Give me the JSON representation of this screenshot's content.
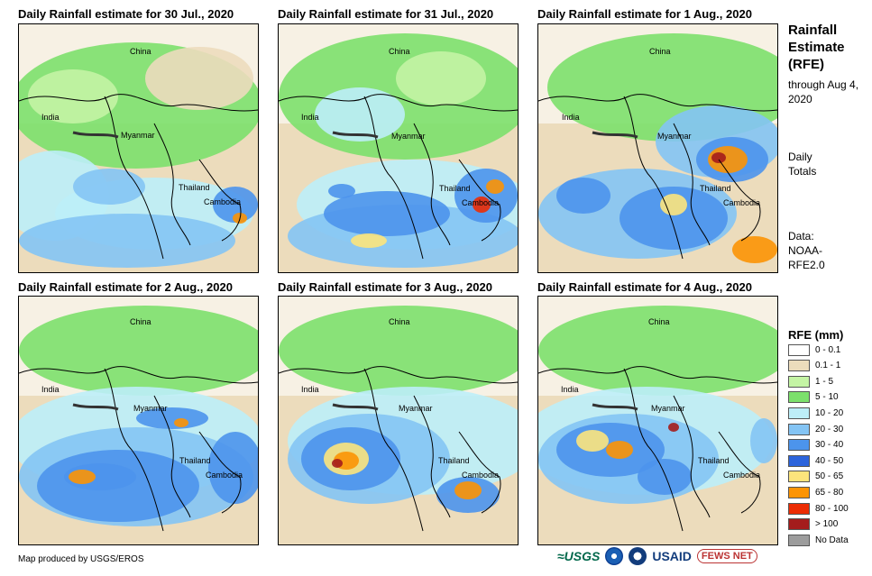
{
  "panels": [
    {
      "title": "Daily Rainfall estimate for 30 Jul., 2020"
    },
    {
      "title": "Daily Rainfall estimate for 31 Jul., 2020"
    },
    {
      "title": "Daily Rainfall estimate for 1 Aug., 2020"
    },
    {
      "title": "Daily Rainfall estimate for 2 Aug., 2020"
    },
    {
      "title": "Daily Rainfall estimate for 3 Aug., 2020"
    },
    {
      "title": "Daily Rainfall estimate for 4 Aug., 2020"
    }
  ],
  "country_labels": {
    "china": "China",
    "india": "India",
    "myanmar": "Myanmar",
    "thailand": "Thailand",
    "cambodia": "Cambodia"
  },
  "sidebar": {
    "title": "Rainfall Estimate (RFE)",
    "through": "through Aug 4, 2020",
    "daily": "Daily Totals",
    "data_source": "Data: NOAA-RFE2.0"
  },
  "legend": {
    "title": "RFE (mm)",
    "items": [
      {
        "label": "0 - 0.1",
        "color": "#ffffff"
      },
      {
        "label": "0.1 - 1",
        "color": "#ecdcbc"
      },
      {
        "label": "1 - 5",
        "color": "#c4f4a4"
      },
      {
        "label": "5 - 10",
        "color": "#7ce06c"
      },
      {
        "label": "10 - 20",
        "color": "#bdeef8"
      },
      {
        "label": "20 - 30",
        "color": "#84c4f4"
      },
      {
        "label": "30 - 40",
        "color": "#4c94ec"
      },
      {
        "label": "40 - 50",
        "color": "#2c64dc"
      },
      {
        "label": "50 - 65",
        "color": "#fce47c"
      },
      {
        "label": "65 - 80",
        "color": "#fc9404"
      },
      {
        "label": "80 - 100",
        "color": "#ec2c04"
      },
      {
        "label": "> 100",
        "color": "#a41c1c"
      },
      {
        "label": "No Data",
        "color": "#9c9c9c"
      }
    ]
  },
  "footer": {
    "credit": "Map produced by USGS/EROS"
  },
  "logos": {
    "usgs": "≈USGS",
    "usaid": "USAID",
    "fews": "FEWS NET"
  }
}
